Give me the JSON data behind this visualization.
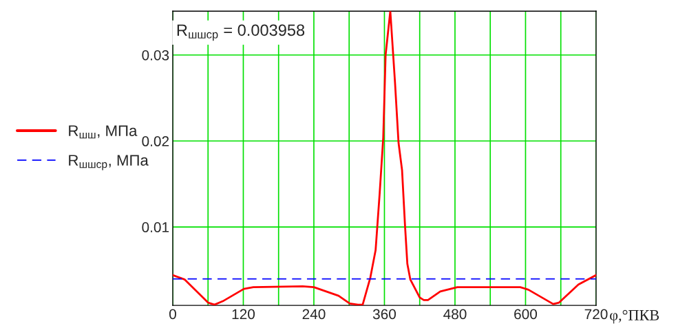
{
  "chart_data": {
    "type": "line",
    "xlabel": "φ,°ПКВ",
    "annotations": [
      "R$_{шшср}$ = 0.003958"
    ],
    "series": [
      {
        "name": "R$_{шш}$, МПа",
        "color": "#ff0000",
        "line_style": "solid",
        "x": [
          0,
          20,
          60,
          71,
          85,
          121,
          137,
          221,
          240,
          282,
          301,
          315,
          323,
          336,
          345,
          352,
          358,
          362,
          370,
          378,
          384,
          390,
          395,
          399,
          404,
          420,
          427,
          434,
          455,
          484,
          591,
          605,
          647,
          657,
          690,
          720
        ],
        "values": [
          0.0044,
          0.0039,
          0.0012,
          0.00096,
          0.00136,
          0.0028,
          0.003,
          0.0031,
          0.003,
          0.002,
          0.0011,
          0.00096,
          0.00096,
          0.0041,
          0.0073,
          0.014,
          0.0204,
          0.03,
          0.0351,
          0.0268,
          0.0198,
          0.0166,
          0.0102,
          0.0057,
          0.0039,
          0.0018,
          0.0015,
          0.0015,
          0.0025,
          0.003,
          0.003,
          0.0027,
          0.00104,
          0.0012,
          0.0033,
          0.0044
        ]
      },
      {
        "name": "R$_{шшср}$, МПа",
        "color": "#0000ff",
        "line_style": "dashed",
        "x": [
          0,
          720
        ],
        "values": [
          0.003958,
          0.003958
        ]
      }
    ],
    "xlim": [
      0,
      720
    ],
    "xticks": [
      0,
      {
        "value": 60,
        "label": null
      },
      120,
      {
        "value": 180,
        "label": null
      },
      240,
      {
        "value": 300,
        "label": null
      },
      360,
      {
        "value": 420,
        "label": null
      },
      480,
      {
        "value": 540,
        "label": null
      },
      600,
      {
        "value": 660,
        "label": null
      },
      720
    ],
    "ylim": [
      0.00088,
      0.0351
    ],
    "yticks": [
      0.01,
      0.02,
      0.03
    ],
    "grid": true,
    "legend": "left"
  }
}
